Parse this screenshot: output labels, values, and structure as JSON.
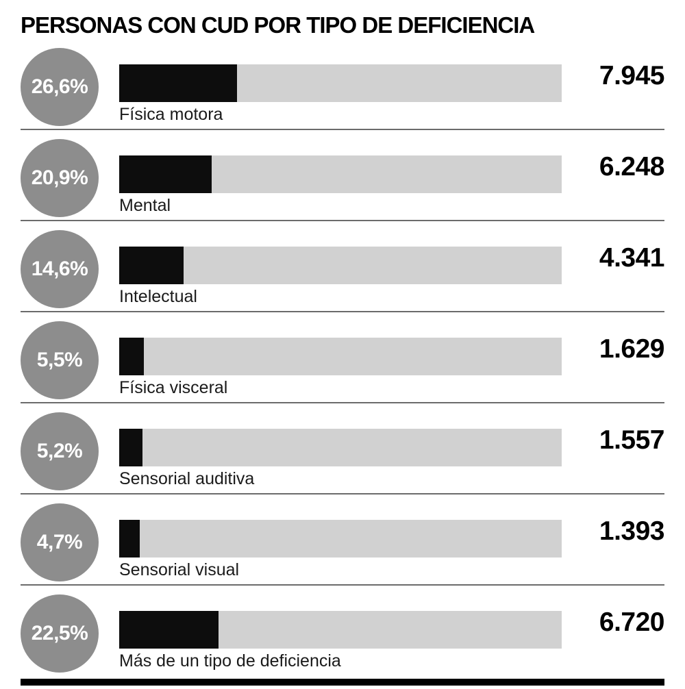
{
  "title": "PERSONAS CON CUD POR TIPO DE DEFICIENCIA",
  "colors": {
    "circle_color": "#8d8d8d",
    "bar_bg": "#d1d1d1",
    "bar_fill": "#0d0d0d",
    "text": "#000000",
    "divider": "#6b6b6b"
  },
  "chart_data": {
    "type": "bar",
    "orientation": "horizontal",
    "title": "PERSONAS CON CUD POR TIPO DE DEFICIENCIA",
    "categories": [
      "Física motora",
      "Mental",
      "Intelectual",
      "Física visceral",
      "Sensorial auditiva",
      "Sensorial visual",
      "Más de un tipo de deficiencia"
    ],
    "values": [
      7945,
      6248,
      4341,
      1629,
      1557,
      1393,
      6720
    ],
    "percentages": [
      26.6,
      20.9,
      14.6,
      5.5,
      5.2,
      4.7,
      22.5
    ],
    "legend": "none",
    "grid": false,
    "rows": [
      {
        "pct_label": "26,6%",
        "pct": 26.6,
        "label": "Física motora",
        "value_label": "7.945",
        "value": 7945
      },
      {
        "pct_label": "20,9%",
        "pct": 20.9,
        "label": "Mental",
        "value_label": "6.248",
        "value": 6248
      },
      {
        "pct_label": "14,6%",
        "pct": 14.6,
        "label": "Intelectual",
        "value_label": "4.341",
        "value": 4341
      },
      {
        "pct_label": "5,5%",
        "pct": 5.5,
        "label": "Física visceral",
        "value_label": "1.629",
        "value": 1629
      },
      {
        "pct_label": "5,2%",
        "pct": 5.2,
        "label": "Sensorial auditiva",
        "value_label": "1.557",
        "value": 1557
      },
      {
        "pct_label": "4,7%",
        "pct": 4.7,
        "label": "Sensorial visual",
        "value_label": "1.393",
        "value": 1393
      },
      {
        "pct_label": "22,5%",
        "pct": 22.5,
        "label": "Más de un tipo de deficiencia",
        "value_label": "6.720",
        "value": 6720
      }
    ]
  }
}
